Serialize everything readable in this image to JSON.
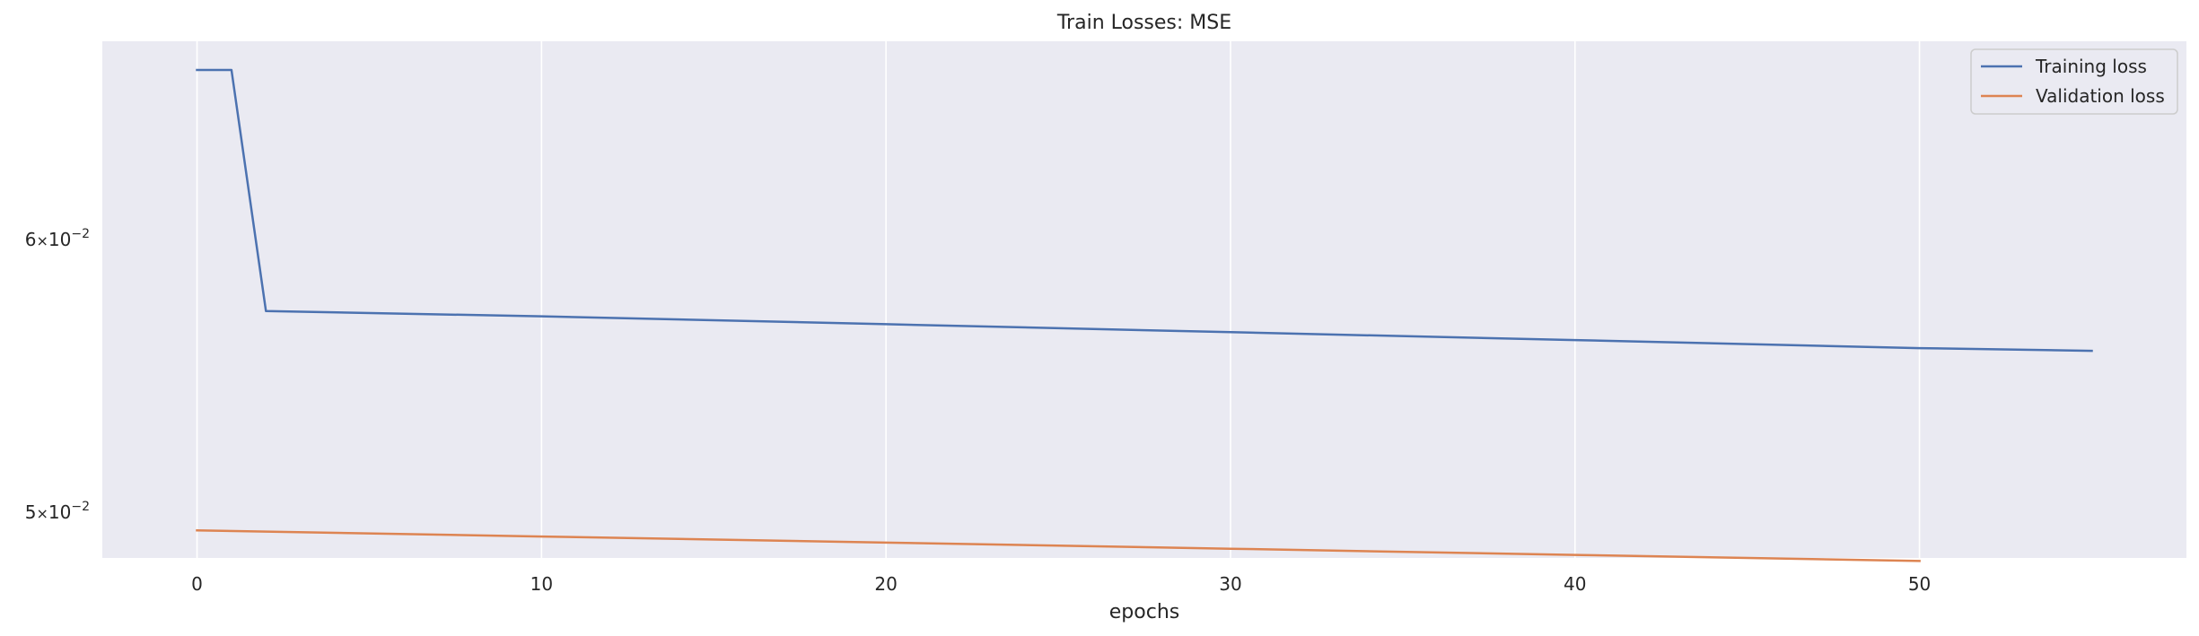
{
  "chart_data": {
    "type": "line",
    "title": "Train Losses:  MSE",
    "xlabel": "epochs",
    "ylabel": "",
    "y_scale": "log",
    "xlim": [
      -2.75,
      57.75
    ],
    "ylim": [
      0.0485,
      0.0685
    ],
    "grid": "vertical",
    "legend_position": "top-right",
    "x_ticks": [
      {
        "value": 0,
        "label": "0"
      },
      {
        "value": 10,
        "label": "10"
      },
      {
        "value": 20,
        "label": "20"
      },
      {
        "value": 30,
        "label": "30"
      },
      {
        "value": 40,
        "label": "40"
      },
      {
        "value": 50,
        "label": "50"
      }
    ],
    "y_ticks": [
      {
        "value": 0.06,
        "mantissa": "6",
        "times": "×",
        "base": "10",
        "exponent": "−2"
      },
      {
        "value": 0.05,
        "mantissa": "5",
        "times": "×",
        "base": "10",
        "exponent": "−2"
      }
    ],
    "series": [
      {
        "name": "Training loss",
        "color": "#4c72b0",
        "x": [
          0,
          1,
          2,
          10,
          20,
          30,
          40,
          50,
          55
        ],
        "values": [
          0.0672,
          0.0672,
          0.0572,
          0.057,
          0.0567,
          0.0564,
          0.0561,
          0.0558,
          0.0557
        ]
      },
      {
        "name": "Validation loss",
        "color": "#dd8452",
        "x": [
          0,
          10,
          20,
          30,
          40,
          50
        ],
        "values": [
          0.0494,
          0.0492,
          0.049,
          0.0488,
          0.0486,
          0.0484
        ]
      }
    ]
  }
}
